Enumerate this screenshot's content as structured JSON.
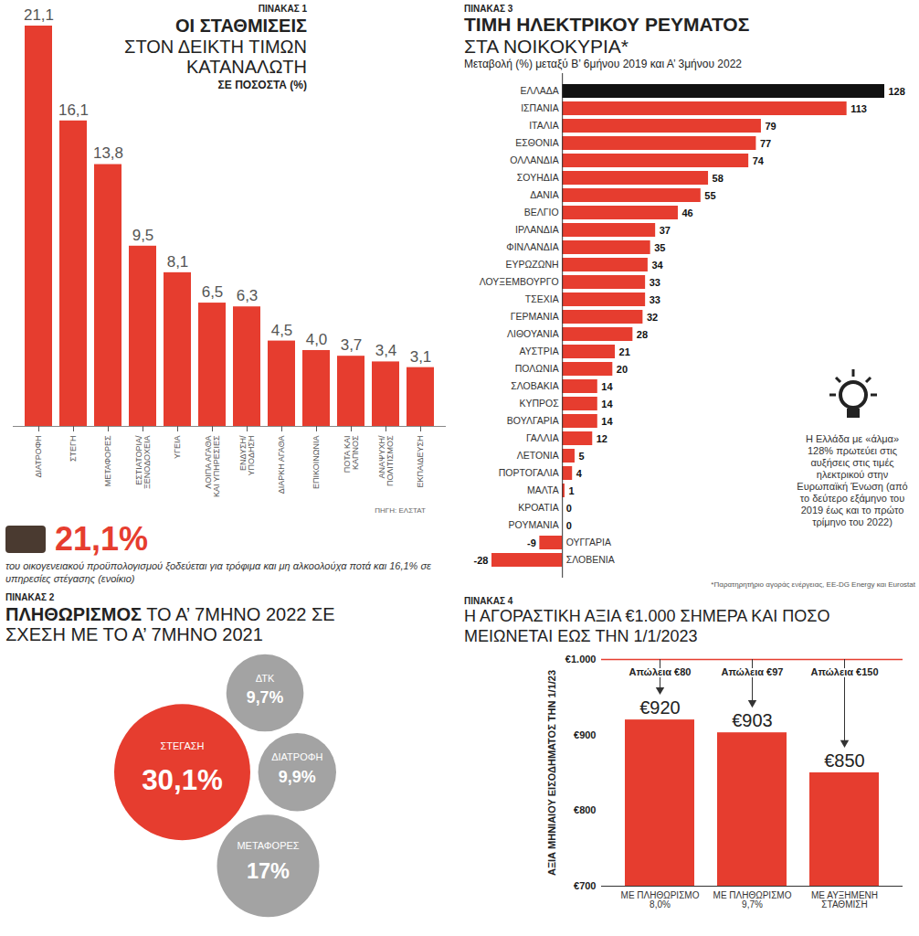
{
  "chart_data": [
    {
      "type": "bar",
      "panel_label": "ΠΙΝΑΚΑΣ 1",
      "title": "ΟΙ ΣΤΑΘΜΙΣΕΙΣ",
      "subtitle": "ΣΤΟΝ ΔΕΙΚΤΗ ΤΙΜΩΝ ΚΑΤΑΝΑΛΩΤΗ",
      "ylabel": "ΣΕ ΠΟΣΟΣΤΑ (%)",
      "categories": [
        "ΔΙΑΤΡΟΦΗ",
        "ΣΤΕΓΗ",
        "ΜΕΤΑΦΟΡΕΣ",
        "ΕΣΤΙΑΤΟΡΙΑ/ ΞΕΝΟΔΟΧΕΙΑ",
        "ΥΓΕΙΑ",
        "ΛΟΙΠΑ ΑΓΑΘΑ ΚΑΙ ΥΠΗΡΕΣΙΕΣ",
        "ΕΝΔΥΣΗ/ ΥΠΟΔΗΣΗ",
        "ΔΙΑΡΚΗ ΑΓΑΘΑ",
        "ΕΠΙΚΟΙΝΩΝΙΑ",
        "ΠΟΤΑ ΚΑΙ ΚΑΠΝΟΣ",
        "ΑΝΑΨΥΧΗ/ ΠΟΛΙΤΙΣΜΟΣ",
        "ΕΚΠΑΙΔΕΥΣΗ"
      ],
      "values": [
        21.1,
        16.1,
        13.8,
        9.5,
        8.1,
        6.5,
        6.3,
        4.5,
        4.0,
        3.7,
        3.4,
        3.1
      ],
      "value_labels": [
        "21,1",
        "16,1",
        "13,8",
        "9,5",
        "8,1",
        "6,5",
        "6,3",
        "4,5",
        "4,0",
        "3,7",
        "3,4",
        "3,1"
      ],
      "color": "#e63d2f",
      "ylim": [
        0,
        21.1
      ],
      "data_labels": true,
      "tick_labels": "x",
      "source": "ΠΗΓΗ: ΕΛΣΤΑΤ",
      "callout": "21,1%",
      "callout_text": "του οικογενειακού προϋπολογισμού ξοδεύεται για τρόφιμα και μη αλκοολούχα ποτά και 16,1% σε υπηρεσίες στέγασης (ενοίκιο)"
    },
    {
      "type": "bubble",
      "panel_label": "ΠΙΝΑΚΑΣ 2",
      "title": "ΠΛΗΘΩΡΙΣΜΟΣ",
      "subtitle": "ΤΟ Α’ 7ΜΗΝΟ 2022 ΣΕ ΣΧΕΣΗ ΜΕ ΤΟ Α’ 7ΜΗΝΟ 2021",
      "categories": [
        "ΣΤΕΓΑΣΗ",
        "ΔΙΑΤΡΟΦΗ",
        "ΔΤΚ",
        "ΜΕΤΑΦΟΡΕΣ"
      ],
      "values": [
        30.1,
        9.9,
        9.7,
        17
      ],
      "value_labels": [
        "30,1%",
        "9,9%",
        "9,7%",
        "17%"
      ],
      "colors": [
        "#e63d2f",
        "#a3a3a3",
        "#a3a3a3",
        "#a3a3a3"
      ],
      "data_labels": true
    },
    {
      "type": "bar",
      "orientation": "horizontal",
      "panel_label": "ΠΙΝΑΚΑΣ 3",
      "title": "ΤΙΜΗ ΗΛΕΚΤΡΙΚΟΥ ΡΕΥΜΑΤΟΣ",
      "subtitle": "ΣΤΑ ΝΟΙΚΟΚΥΡΙΑ*",
      "xlabel": "Μεταβολή (%) μεταξύ Β’ 6μήνου 2019 και Α’ 3μήνου 2022",
      "categories": [
        "ΕΛΛΑΔΑ",
        "ΙΣΠΑΝΙΑ",
        "ΙΤΑΛΙΑ",
        "ΕΣΘΟΝΙΑ",
        "ΟΛΛΑΝΔΙΑ",
        "ΣΟΥΗΔΙΑ",
        "ΔΑΝΙΑ",
        "ΒΕΛΓΙΟ",
        "ΙΡΛΑΝΔΙΑ",
        "ΦΙΝΛΑΝΔΙΑ",
        "ΕΥΡΩΖΩΝΗ",
        "ΛΟΥΞΕΜΒΟΥΡΓΟ",
        "ΤΣΕΧΙΑ",
        "ΓΕΡΜΑΝΙΑ",
        "ΛΙΘΟΥΑΝΙΑ",
        "ΑΥΣΤΡΙΑ",
        "ΠΟΛΩΝΙΑ",
        "ΣΛΟΒΑΚΙΑ",
        "ΚΥΠΡΟΣ",
        "ΒΟΥΛΓΑΡΙΑ",
        "ΓΑΛΛΙΑ",
        "ΛΕΤΟΝΙΑ",
        "ΠΟΡΤΟΓΑΛΙΑ",
        "ΜΑΛΤΑ",
        "ΚΡΟΑΤΙΑ",
        "ΡΟΥΜΑΝΙΑ",
        "ΟΥΓΓΑΡΙΑ",
        "ΣΛΟΒΕΝΙΑ"
      ],
      "values": [
        128,
        113,
        79,
        77,
        74,
        58,
        55,
        46,
        37,
        35,
        34,
        33,
        33,
        32,
        28,
        21,
        20,
        14,
        14,
        14,
        12,
        5,
        4,
        1,
        0,
        0,
        -9,
        -28
      ],
      "colors": [
        "#111111",
        "#e63d2f",
        "#e63d2f",
        "#e63d2f",
        "#e63d2f",
        "#e63d2f",
        "#e63d2f",
        "#e63d2f",
        "#e63d2f",
        "#e63d2f",
        "#e63d2f",
        "#e63d2f",
        "#e63d2f",
        "#e63d2f",
        "#e63d2f",
        "#e63d2f",
        "#e63d2f",
        "#e63d2f",
        "#e63d2f",
        "#e63d2f",
        "#e63d2f",
        "#e63d2f",
        "#e63d2f",
        "#e63d2f",
        "#e63d2f",
        "#e63d2f",
        "#e63d2f",
        "#e63d2f"
      ],
      "xlim": [
        -28,
        128
      ],
      "data_labels": true,
      "tick_labels": "y",
      "annotation": "Η Ελλάδα με «άλμα» 128% πρωτεύει στις αυξήσεις στις τιμές ηλεκτρικού στην Ευρωπαϊκή Ένωση (από το δεύτερο εξάμηνο του 2019 έως και το πρώτο τρίμηνο του 2022)",
      "footnote": "*Παρατηρητήριο αγοράς ενέργειας, ΕΕ-DG Energy και Eurostat"
    },
    {
      "type": "bar",
      "panel_label": "ΠΙΝΑΚΑΣ 4",
      "title": "Η ΑΓΟΡΑΣΤΙΚΗ ΑΞΙΑ €1.000 ΣΗΜΕΡΑ ΚΑΙ ΠΟΣΟ ΜΕΙΩΝΕΤΑΙ ΕΩΣ ΤΗΝ 1/1/2023",
      "ylabel": "ΑΞΙΑ ΜΗΝΙΑΙΟΥ ΕΙΣΟΔΗΜΑΤΟΣ ΤΗΝ 1/1/23",
      "categories": [
        "ΜΕ ΠΛΗΘΩΡΙΣΜΟ 8,0%",
        "ΜΕ ΠΛΗΘΩΡΙΣΜΟ 9,7%",
        "ΜΕ ΑΥΞΗΜΕΝΗ ΣΤΑΘΜΙΣΗ"
      ],
      "values": [
        920,
        903,
        850
      ],
      "value_labels": [
        "€920",
        "€903",
        "€850"
      ],
      "annotations": [
        "Απώλεια €80",
        "Απώλεια €97",
        "Απώλεια €150"
      ],
      "color": "#e63d2f",
      "ylim": [
        700,
        1000
      ],
      "yticks": [
        {
          "value": 700,
          "label": "€700"
        },
        {
          "value": 800,
          "label": "€800"
        },
        {
          "value": 900,
          "label": "€900"
        },
        {
          "value": 1000,
          "label": "€1.000"
        }
      ],
      "data_labels": true
    }
  ]
}
